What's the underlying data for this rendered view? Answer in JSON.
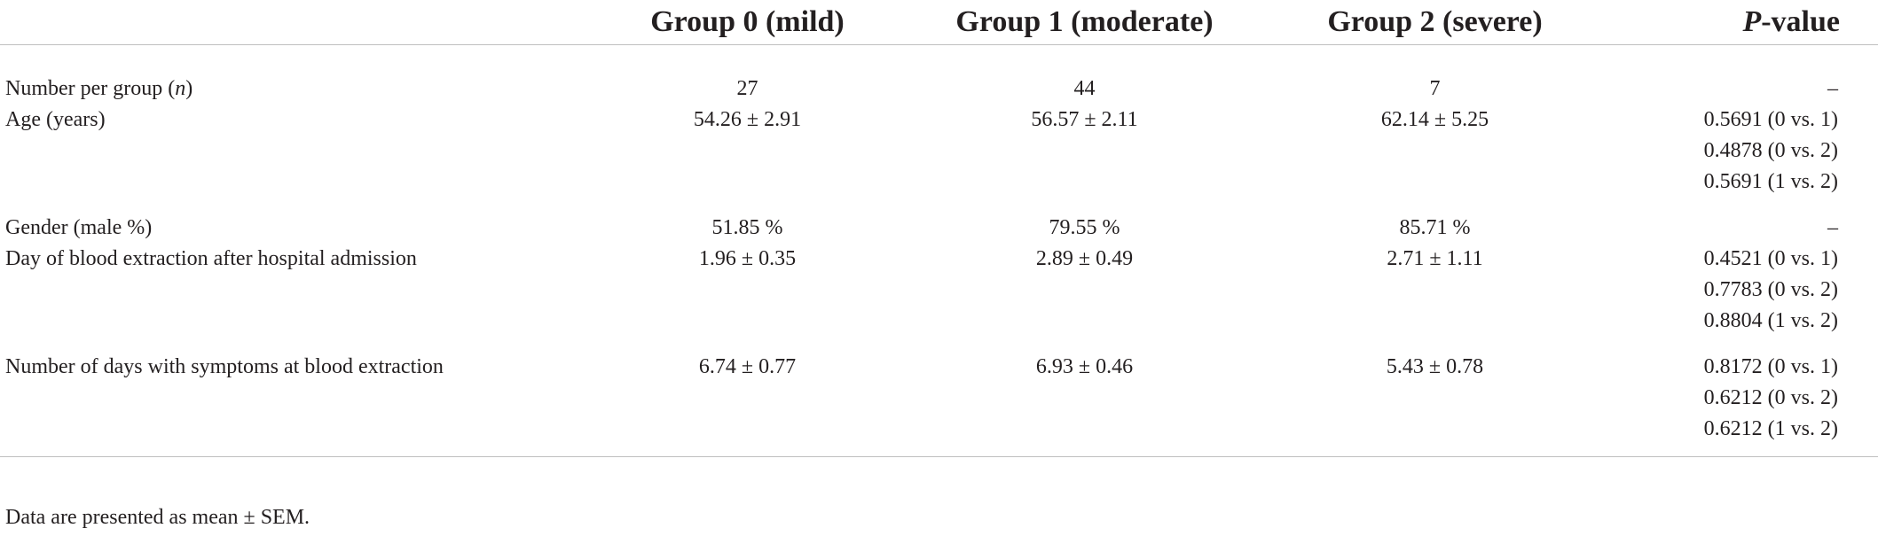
{
  "table": {
    "headers": {
      "parameter": "",
      "group0": "Group 0 (mild)",
      "group1": "Group 1 (moderate)",
      "group2": "Group 2 (severe)",
      "pvalue_italic": "P",
      "pvalue_rest": "-value"
    },
    "rows": [
      {
        "label_main": "Number per group (",
        "label_italic": "n",
        "label_tail": ")",
        "group0": "27",
        "group1": "44",
        "group2": "7",
        "pvalues": [
          "–"
        ]
      },
      {
        "label": "Age (years)",
        "group0": "54.26 ± 2.91",
        "group1": "56.57 ± 2.11",
        "group2": "62.14 ± 5.25",
        "pvalues": [
          "0.5691 (0 vs. 1)",
          "0.4878 (0 vs. 2)",
          "0.5691 (1 vs. 2)"
        ]
      },
      {
        "label": "Gender (male %)",
        "group0": "51.85 %",
        "group1": "79.55 %",
        "group2": "85.71 %",
        "pvalues": [
          "–"
        ]
      },
      {
        "label": "Day of blood extraction after hospital admission",
        "group0": "1.96 ± 0.35",
        "group1": "2.89 ± 0.49",
        "group2": "2.71 ± 1.11",
        "pvalues": [
          "0.4521 (0 vs. 1)",
          "0.7783 (0 vs. 2)",
          "0.8804 (1 vs. 2)"
        ]
      },
      {
        "label": "Number of days with symptoms at blood extraction",
        "group0": "6.74 ± 0.77",
        "group1": "6.93 ± 0.46",
        "group2": "5.43 ± 0.78",
        "pvalues": [
          "0.8172 (0 vs. 1)",
          "0.6212 (0 vs. 2)",
          "0.6212 (1 vs. 2)"
        ]
      }
    ]
  },
  "footnote": "Data are presented as mean ± SEM."
}
